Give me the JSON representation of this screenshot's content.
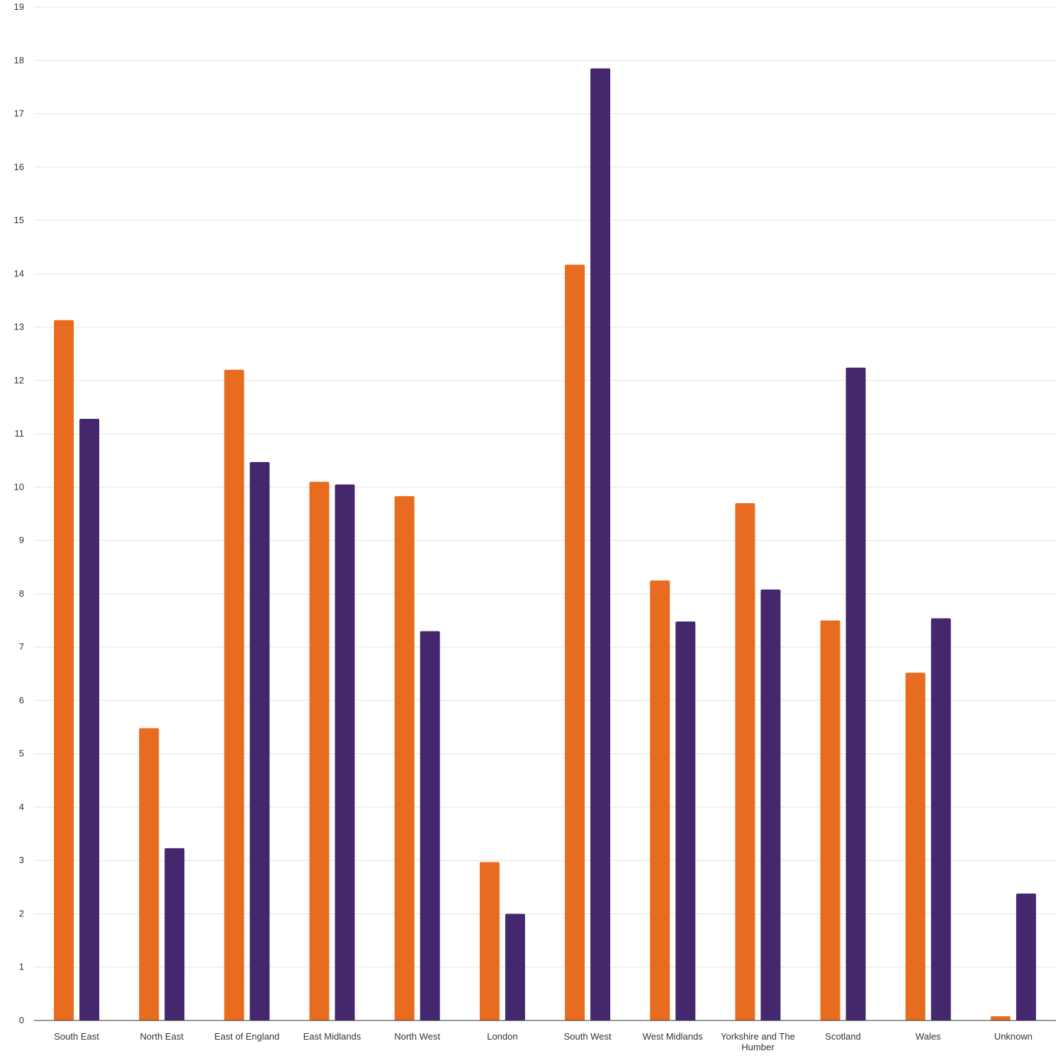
{
  "chart_data": {
    "type": "bar",
    "categories": [
      "South East",
      "North East",
      "East of England",
      "East Midlands",
      "North West",
      "London",
      "South West",
      "West Midlands",
      "Yorkshire and The Humber",
      "Scotland",
      "Wales",
      "Unknown"
    ],
    "series": [
      {
        "color": "#e86c1f",
        "values": [
          13.13,
          5.48,
          12.2,
          10.1,
          9.83,
          2.97,
          14.17,
          8.25,
          9.7,
          7.5,
          6.52,
          0.08
        ]
      },
      {
        "color": "#44276d",
        "values": [
          11.28,
          3.23,
          10.47,
          10.05,
          7.3,
          2.0,
          17.85,
          7.48,
          8.08,
          12.24,
          7.54,
          2.38
        ]
      }
    ],
    "ylim": [
      0,
      19
    ],
    "yticks": [
      "0",
      "1",
      "2",
      "3",
      "4",
      "5",
      "6",
      "7",
      "8",
      "9",
      "10",
      "11",
      "12",
      "13",
      "14",
      "15",
      "16",
      "17",
      "18",
      "19"
    ],
    "grid": true,
    "legend": "none"
  }
}
